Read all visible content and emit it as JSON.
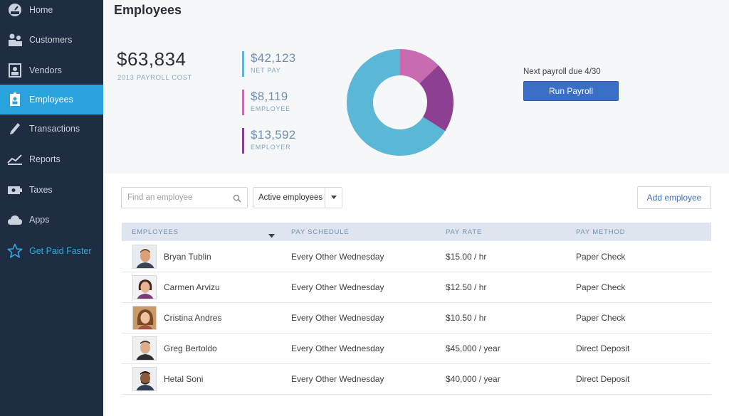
{
  "sidebar": {
    "items": [
      {
        "label": "Home",
        "icon": "dashboard-icon"
      },
      {
        "label": "Customers",
        "icon": "customers-icon"
      },
      {
        "label": "Vendors",
        "icon": "vendors-icon"
      },
      {
        "label": "Employees",
        "icon": "employee-badge-icon",
        "active": true
      },
      {
        "label": "Transactions",
        "icon": "transactions-icon"
      },
      {
        "label": "Reports",
        "icon": "reports-icon"
      },
      {
        "label": "Taxes",
        "icon": "taxes-icon"
      },
      {
        "label": "Apps",
        "icon": "apps-cloud-icon"
      }
    ],
    "promo": {
      "label": "Get Paid Faster",
      "icon": "star-icon"
    }
  },
  "header": {
    "title": "Employees"
  },
  "summary": {
    "total": "$63,834",
    "total_label": "2013 PAYROLL COST",
    "metrics": [
      {
        "value": "$42,123",
        "label": "NET PAY",
        "color": "#5bb7d6"
      },
      {
        "value": "$8,119",
        "label": "EMPLOYEE",
        "color": "#c86bb0"
      },
      {
        "value": "$13,592",
        "label": "EMPLOYER",
        "color": "#8d3f92"
      }
    ],
    "next_payroll": "Next payroll due 4/30",
    "run_payroll_label": "Run Payroll"
  },
  "controls": {
    "search_placeholder": "Find an employee",
    "filter_value": "Active employees",
    "add_employee_label": "Add employee"
  },
  "table": {
    "headers": [
      "EMPLOYEES",
      "PAY SCHEDULE",
      "PAY RATE",
      "PAY METHOD"
    ],
    "rows": [
      {
        "name": "Bryan Tublin",
        "schedule": "Every Other Wednesday",
        "rate": "$15.00 / hr",
        "method": "Paper Check"
      },
      {
        "name": "Carmen Arvizu",
        "schedule": "Every Other Wednesday",
        "rate": "$12.50 / hr",
        "method": "Paper Check"
      },
      {
        "name": "Cristina Andres",
        "schedule": "Every Other Wednesday",
        "rate": "$10.50 / hr",
        "method": "Paper Check"
      },
      {
        "name": "Greg Bertoldo",
        "schedule": "Every Other Wednesday",
        "rate": "$45,000 / year",
        "method": "Direct Deposit"
      },
      {
        "name": "Hetal Soni",
        "schedule": "Every Other Wednesday",
        "rate": "$40,000 / year",
        "method": "Direct Deposit"
      }
    ]
  },
  "colors": {
    "sidebar_bg": "#1f2d42",
    "active": "#2aa2dc",
    "primary_button": "#3b6fc6"
  }
}
